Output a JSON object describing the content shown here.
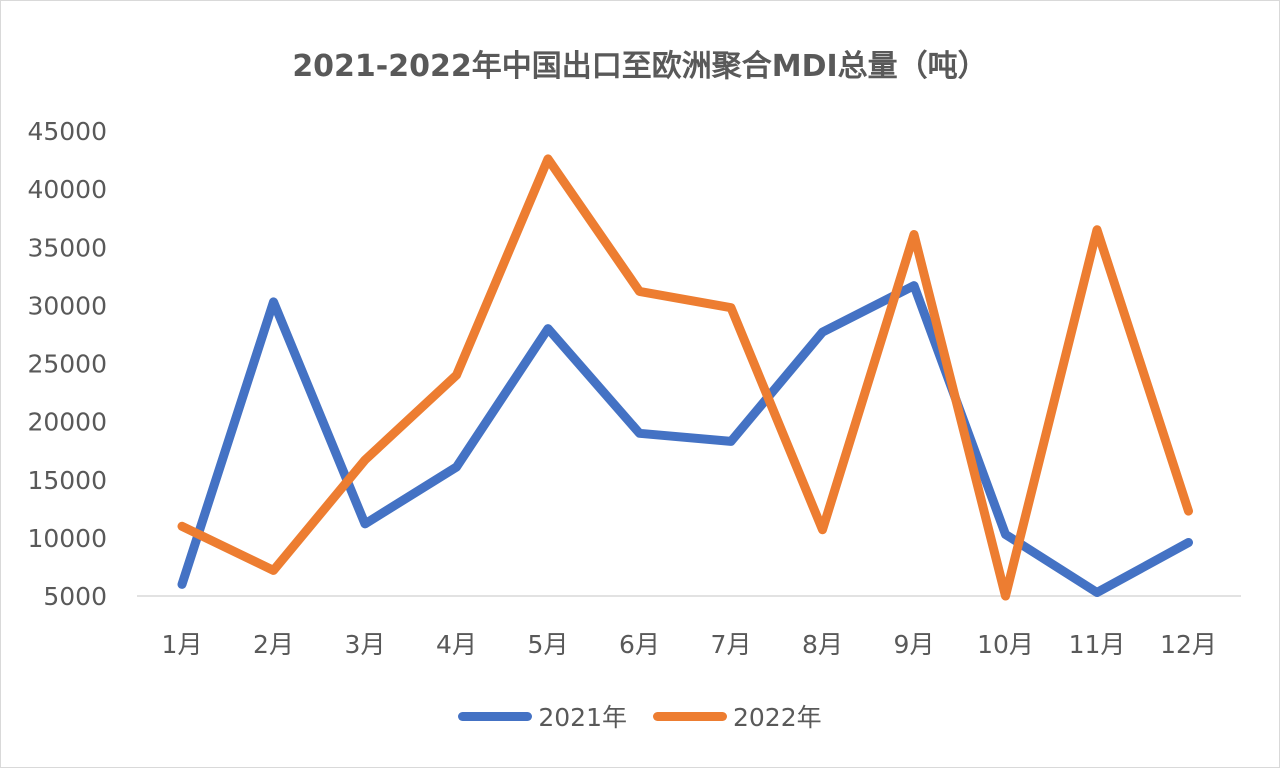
{
  "chart_data": {
    "type": "line",
    "title": "2021-2022年中国出口至欧洲聚合MDI总量（吨）",
    "xlabel": "",
    "ylabel": "",
    "categories": [
      "1月",
      "2月",
      "3月",
      "4月",
      "5月",
      "6月",
      "7月",
      "8月",
      "9月",
      "10月",
      "11月",
      "12月"
    ],
    "yticks": [
      "5000",
      "10000",
      "15000",
      "20000",
      "25000",
      "30000",
      "35000",
      "40000",
      "45000"
    ],
    "ylim": [
      5000,
      45000
    ],
    "grid": false,
    "legend_position": "bottom",
    "series": [
      {
        "name": "2021年",
        "color": "#4472C4",
        "values": [
          6000,
          30300,
          11200,
          16100,
          28000,
          19000,
          18300,
          27700,
          31700,
          10300,
          5300,
          9600
        ]
      },
      {
        "name": "2022年",
        "color": "#ED7D31",
        "values": [
          11000,
          7200,
          16700,
          24000,
          42600,
          31200,
          29800,
          10700,
          36100,
          5000,
          36500,
          12300
        ]
      }
    ]
  }
}
